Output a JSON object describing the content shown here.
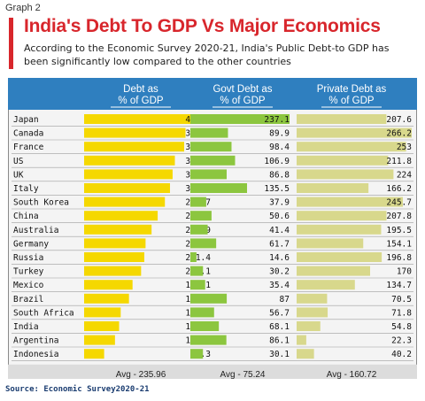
{
  "header": {
    "graph_label": "Graph 2",
    "title": "India's Debt To GDP Vs Major Economics",
    "subtitle": "According to the Economic Survey 2020-21, India's Public Debt-to GDP has been significantly low compared to the other countries"
  },
  "source": "Source: Economic Survey2020-21",
  "colors": {
    "header_band": "#2f7fbf",
    "debt_bar": "#f5d800",
    "govt_bar": "#8cc63f",
    "private_bar": "#d8d88c",
    "title_red": "#d8262c",
    "row_divider": "#9e9e9e"
  },
  "chart_data": {
    "type": "bar",
    "orientation": "horizontal",
    "categories": [
      "Japan",
      "Canada",
      "France",
      "US",
      "UK",
      "Italy",
      "South Korea",
      "China",
      "Australia",
      "Germany",
      "Russia",
      "Turkey",
      "Mexico",
      "Brazil",
      "South Africa",
      "India",
      "Argentina",
      "Indonesia"
    ],
    "series": [
      {
        "name": "Debt as % of GDP",
        "values": [
          444.7,
          356.1,
          351.4,
          318.7,
          310.8,
          301.6,
          283.7,
          258.4,
          236.9,
          215.8,
          211.4,
          200.1,
          170.1,
          157.5,
          128.5,
          122.9,
          108.4,
          70.3
        ],
        "average_label": "Avg - 235.96"
      },
      {
        "name": "Govt Debt as % of GDP",
        "values": [
          237.1,
          89.9,
          98.4,
          106.9,
          86.8,
          135.5,
          37.9,
          50.6,
          41.4,
          61.7,
          14.6,
          30.2,
          35.4,
          87,
          56.7,
          68.1,
          86.1,
          30.1
        ],
        "average_label": "Avg - 75.24"
      },
      {
        "name": "Private Debt as % of GDP",
        "values": [
          207.6,
          266.2,
          253,
          211.8,
          224,
          166.2,
          245.7,
          207.8,
          195.5,
          154.1,
          196.8,
          170,
          134.7,
          70.5,
          71.8,
          54.8,
          22.3,
          40.2
        ],
        "average_label": "Avg - 160.72"
      }
    ],
    "value_labels": {
      "Debt as % of GDP": [
        "444.7",
        "356.1",
        "351.4",
        "318.7",
        "310.8",
        "301.6",
        "283.7",
        "258.4",
        "236.9",
        "215.8",
        "211.4",
        "200.1",
        "170.1",
        "157.5",
        "128.5",
        "122.9",
        "108.4",
        "70.3"
      ],
      "Govt Debt as % of GDP": [
        "237.1",
        "89.9",
        "98.4",
        "106.9",
        "86.8",
        "135.5",
        "37.9",
        "50.6",
        "41.4",
        "61.7",
        "14.6",
        "30.2",
        "35.4",
        "87",
        "56.7",
        "68.1",
        "86.1",
        "30.1"
      ],
      "Private Debt as % of GDP": [
        "207.6",
        "266.2",
        "253",
        "211.8",
        "224",
        "166.2",
        "245.7",
        "207.8",
        "195.5",
        "154.1",
        "196.8",
        "170",
        "134.7",
        "70.5",
        "71.8",
        "54.8",
        "22.3",
        "40.2"
      ]
    },
    "title": "India's Debt To GDP Vs Major Economics",
    "xlabel": "",
    "ylabel": "",
    "grid": false,
    "legend": "column headers"
  }
}
